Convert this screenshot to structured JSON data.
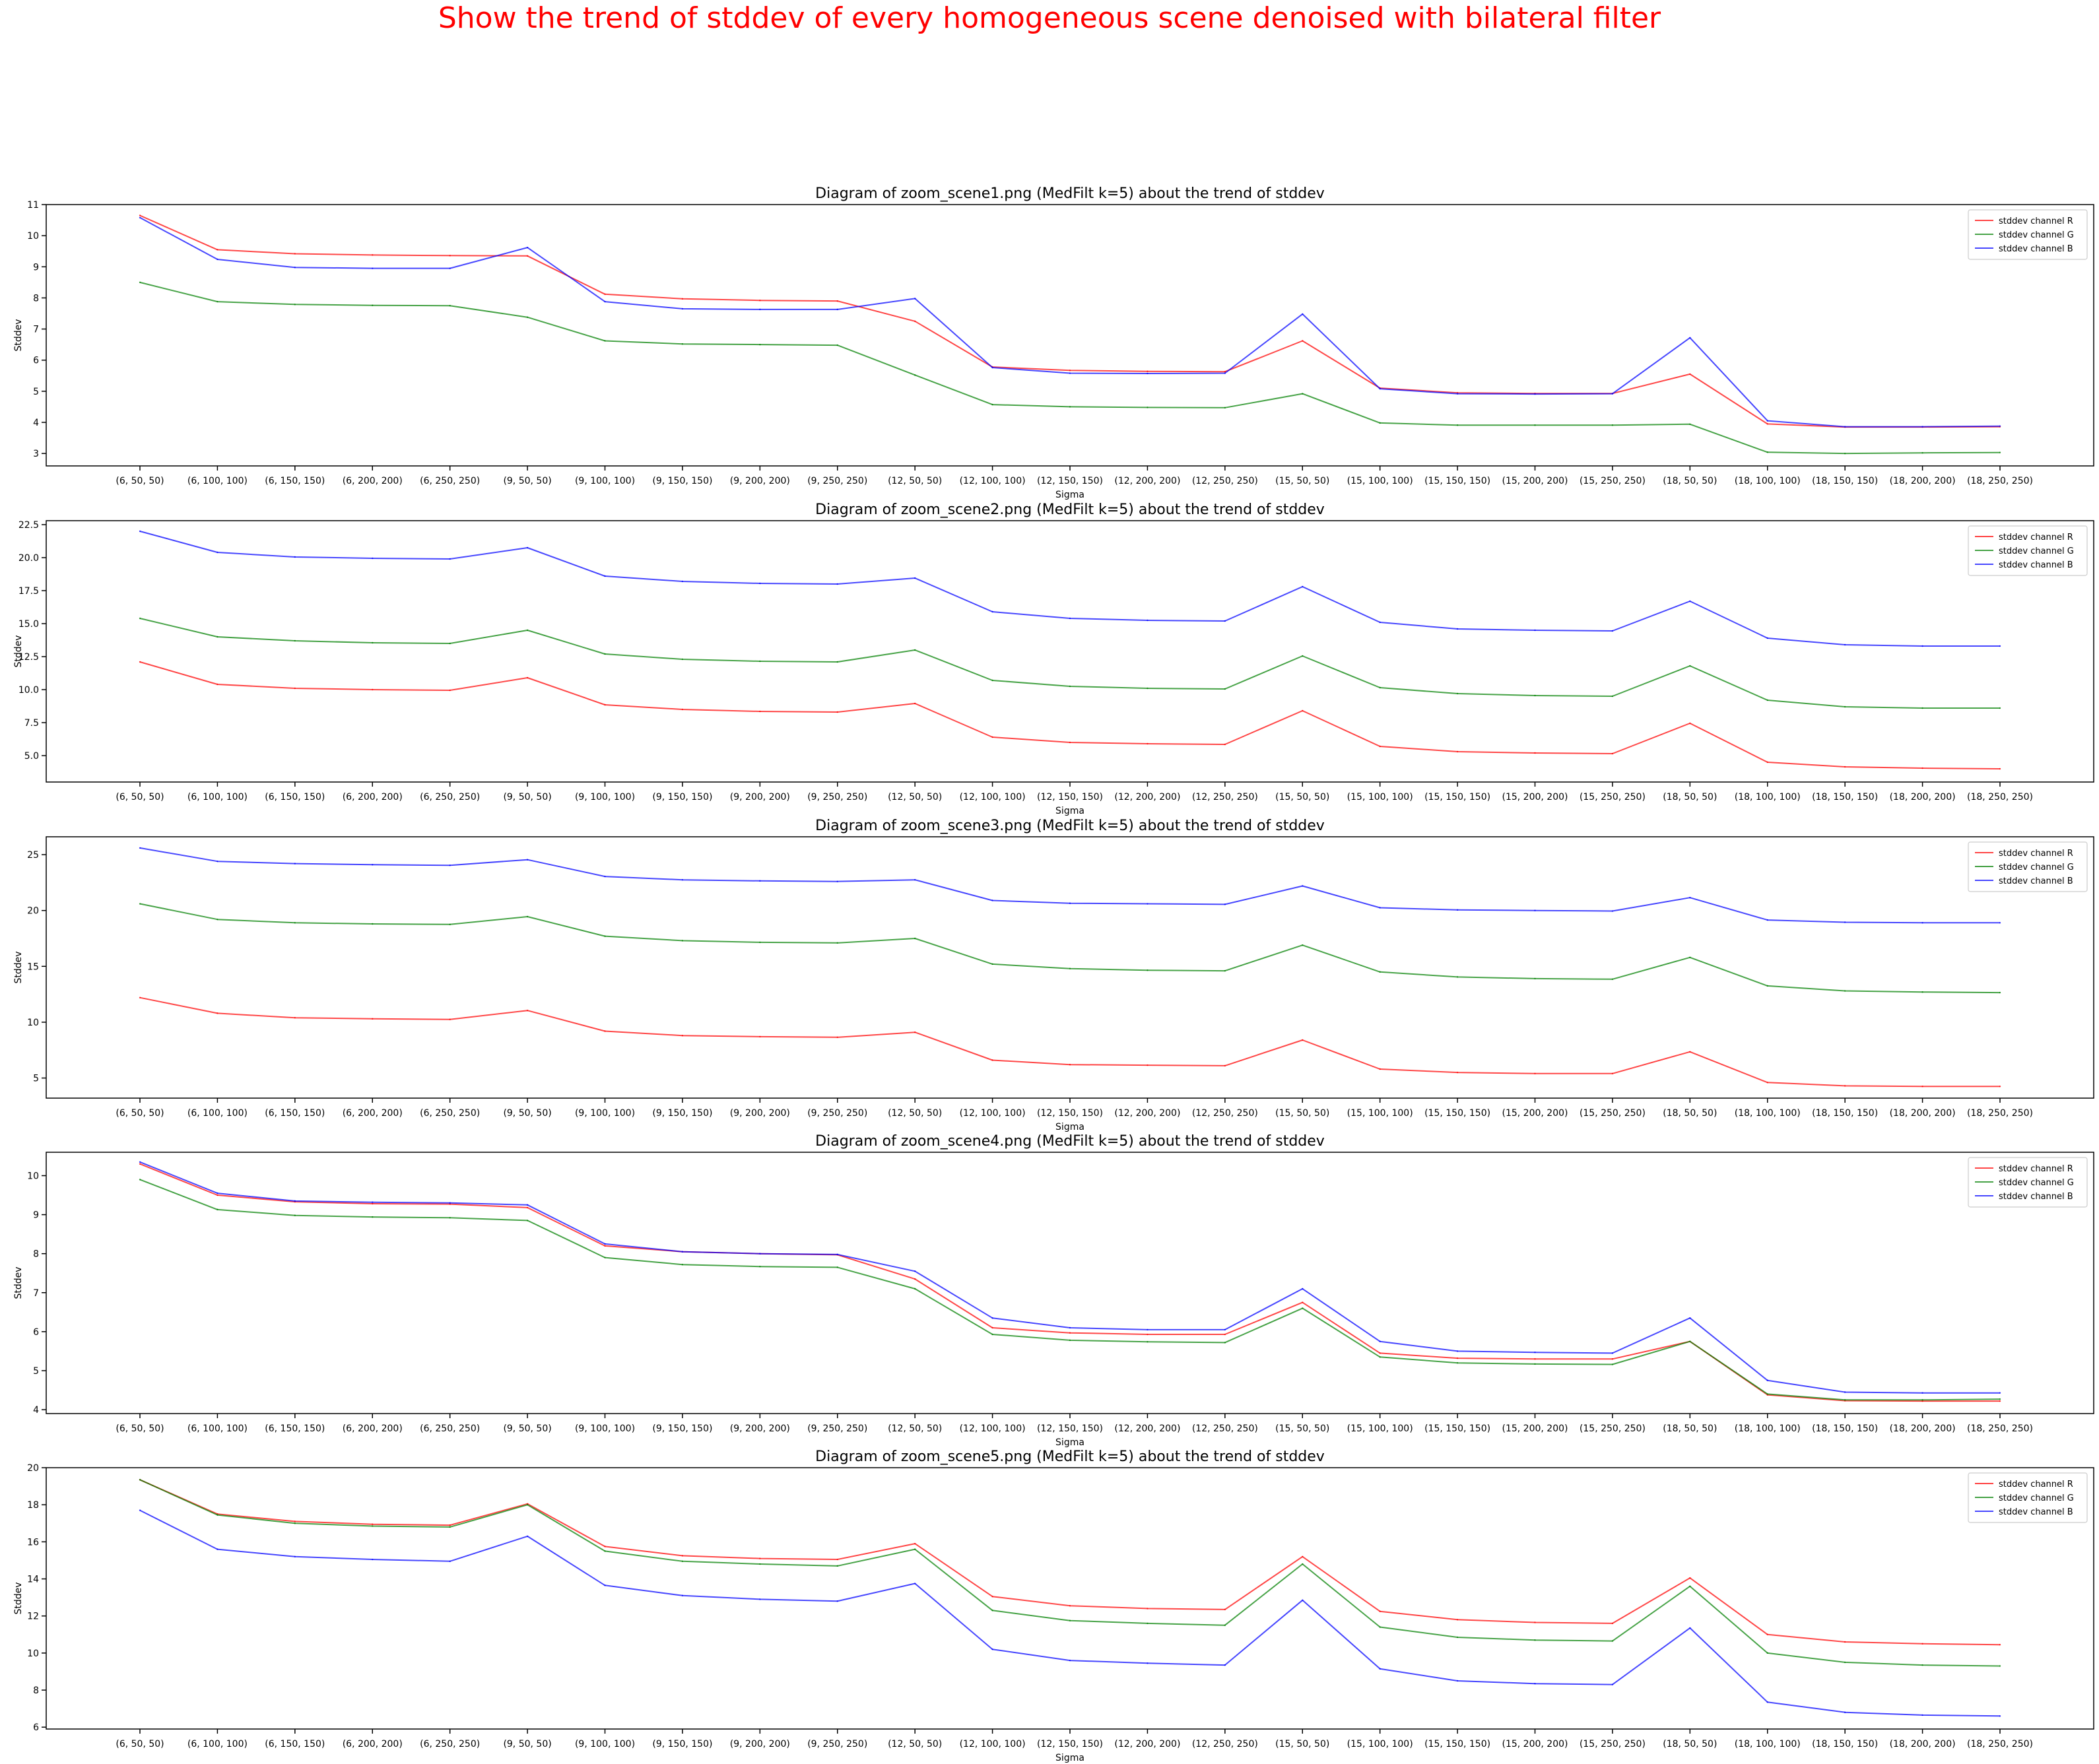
{
  "figure": {
    "suptitle": "Show the trend of stddev of every homogeneous scene denoised with bilateral filter",
    "suptitle_color": "#ff0000"
  },
  "chart_data": [
    {
      "type": "line",
      "title": "Diagram of zoom_scene1.png (MedFilt k=5) about the trend of stddev",
      "xlabel": "Sigma",
      "ylabel": "Stddev",
      "categories": [
        "(6, 50, 50)",
        "(6, 100, 100)",
        "(6, 150, 150)",
        "(6, 200, 200)",
        "(6, 250, 250)",
        "(9, 50, 50)",
        "(9, 100, 100)",
        "(9, 150, 150)",
        "(9, 200, 200)",
        "(9, 250, 250)",
        "(12, 50, 50)",
        "(12, 100, 100)",
        "(12, 150, 150)",
        "(12, 200, 200)",
        "(12, 250, 250)",
        "(15, 50, 50)",
        "(15, 100, 100)",
        "(15, 150, 150)",
        "(15, 200, 200)",
        "(15, 250, 250)",
        "(18, 50, 50)",
        "(18, 100, 100)",
        "(18, 150, 150)",
        "(18, 200, 200)",
        "(18, 250, 250)"
      ],
      "ylim": [
        2.6,
        11.0
      ],
      "yticks": [
        3,
        4,
        5,
        6,
        7,
        8,
        9,
        10,
        11
      ],
      "ytick_labels": [
        "3",
        "4",
        "5",
        "6",
        "7",
        "8",
        "9",
        "10",
        "11"
      ],
      "legend": "top-right",
      "series": [
        {
          "name": "stddev channel R",
          "color": "#ff0000",
          "values": [
            10.65,
            9.55,
            9.42,
            9.38,
            9.36,
            9.35,
            8.12,
            7.97,
            7.92,
            7.9,
            7.25,
            5.78,
            5.67,
            5.64,
            5.63,
            6.62,
            5.1,
            4.95,
            4.93,
            4.93,
            5.55,
            3.95,
            3.85,
            3.85,
            3.86
          ]
        },
        {
          "name": "stddev channel G",
          "color": "#008000",
          "values": [
            8.5,
            7.88,
            7.79,
            7.76,
            7.75,
            7.38,
            6.62,
            6.52,
            6.5,
            6.48,
            5.52,
            4.57,
            4.5,
            4.48,
            4.47,
            4.92,
            3.98,
            3.91,
            3.91,
            3.91,
            3.94,
            3.04,
            3.0,
            3.02,
            3.03
          ]
        },
        {
          "name": "stddev channel B",
          "color": "#0000ff",
          "values": [
            10.58,
            9.24,
            8.98,
            8.95,
            8.95,
            9.62,
            7.88,
            7.65,
            7.63,
            7.63,
            7.98,
            5.76,
            5.58,
            5.57,
            5.58,
            7.48,
            5.08,
            4.92,
            4.91,
            4.92,
            6.72,
            4.05,
            3.86,
            3.86,
            3.88
          ]
        }
      ]
    },
    {
      "type": "line",
      "title": "Diagram of zoom_scene2.png (MedFilt k=5) about the trend of stddev",
      "xlabel": "Sigma",
      "ylabel": "Stddev",
      "categories": [
        "(6, 50, 50)",
        "(6, 100, 100)",
        "(6, 150, 150)",
        "(6, 200, 200)",
        "(6, 250, 250)",
        "(9, 50, 50)",
        "(9, 100, 100)",
        "(9, 150, 150)",
        "(9, 200, 200)",
        "(9, 250, 250)",
        "(12, 50, 50)",
        "(12, 100, 100)",
        "(12, 150, 150)",
        "(12, 200, 200)",
        "(12, 250, 250)",
        "(15, 50, 50)",
        "(15, 100, 100)",
        "(15, 150, 150)",
        "(15, 200, 200)",
        "(15, 250, 250)",
        "(18, 50, 50)",
        "(18, 100, 100)",
        "(18, 150, 150)",
        "(18, 200, 200)",
        "(18, 250, 250)"
      ],
      "ylim": [
        3.0,
        22.8
      ],
      "yticks": [
        5.0,
        7.5,
        10.0,
        12.5,
        15.0,
        17.5,
        20.0,
        22.5
      ],
      "ytick_labels": [
        "5.0",
        "7.5",
        "10.0",
        "12.5",
        "15.0",
        "17.5",
        "20.0",
        "22.5"
      ],
      "legend": "top-right",
      "series": [
        {
          "name": "stddev channel R",
          "color": "#ff0000",
          "values": [
            12.1,
            10.4,
            10.1,
            10.0,
            9.95,
            10.9,
            8.85,
            8.5,
            8.35,
            8.3,
            8.95,
            6.4,
            6.0,
            5.9,
            5.85,
            8.4,
            5.7,
            5.3,
            5.2,
            5.15,
            7.45,
            4.5,
            4.15,
            4.05,
            4.0
          ]
        },
        {
          "name": "stddev channel G",
          "color": "#008000",
          "values": [
            15.4,
            14.0,
            13.7,
            13.55,
            13.5,
            14.5,
            12.7,
            12.3,
            12.15,
            12.1,
            13.0,
            10.7,
            10.25,
            10.1,
            10.05,
            12.55,
            10.15,
            9.7,
            9.55,
            9.5,
            11.8,
            9.2,
            8.7,
            8.6,
            8.6
          ]
        },
        {
          "name": "stddev channel B",
          "color": "#0000ff",
          "values": [
            22.0,
            20.4,
            20.05,
            19.95,
            19.9,
            20.75,
            18.6,
            18.2,
            18.05,
            18.0,
            18.45,
            15.9,
            15.4,
            15.25,
            15.2,
            17.8,
            15.1,
            14.6,
            14.5,
            14.45,
            16.7,
            13.9,
            13.4,
            13.3,
            13.3
          ]
        }
      ]
    },
    {
      "type": "line",
      "title": "Diagram of zoom_scene3.png (MedFilt k=5) about the trend of stddev",
      "xlabel": "Sigma",
      "ylabel": "Stddev",
      "categories": [
        "(6, 50, 50)",
        "(6, 100, 100)",
        "(6, 150, 150)",
        "(6, 200, 200)",
        "(6, 250, 250)",
        "(9, 50, 50)",
        "(9, 100, 100)",
        "(9, 150, 150)",
        "(9, 200, 200)",
        "(9, 250, 250)",
        "(12, 50, 50)",
        "(12, 100, 100)",
        "(12, 150, 150)",
        "(12, 200, 200)",
        "(12, 250, 250)",
        "(15, 50, 50)",
        "(15, 100, 100)",
        "(15, 150, 150)",
        "(15, 200, 200)",
        "(15, 250, 250)",
        "(18, 50, 50)",
        "(18, 100, 100)",
        "(18, 150, 150)",
        "(18, 200, 200)",
        "(18, 250, 250)"
      ],
      "ylim": [
        3.2,
        26.6
      ],
      "yticks": [
        5,
        10,
        15,
        20,
        25
      ],
      "ytick_labels": [
        "5",
        "10",
        "15",
        "20",
        "25"
      ],
      "legend": "top-right",
      "series": [
        {
          "name": "stddev channel R",
          "color": "#ff0000",
          "values": [
            12.2,
            10.8,
            10.4,
            10.3,
            10.25,
            11.05,
            9.2,
            8.8,
            8.7,
            8.65,
            9.1,
            6.6,
            6.2,
            6.15,
            6.1,
            8.4,
            5.8,
            5.5,
            5.4,
            5.4,
            7.35,
            4.6,
            4.3,
            4.25,
            4.25
          ]
        },
        {
          "name": "stddev channel G",
          "color": "#008000",
          "values": [
            20.6,
            19.2,
            18.9,
            18.8,
            18.75,
            19.45,
            17.7,
            17.3,
            17.15,
            17.1,
            17.5,
            15.2,
            14.8,
            14.65,
            14.6,
            16.9,
            14.5,
            14.05,
            13.9,
            13.85,
            15.8,
            13.25,
            12.8,
            12.7,
            12.65
          ]
        },
        {
          "name": "stddev channel B",
          "color": "#0000ff",
          "values": [
            25.6,
            24.4,
            24.2,
            24.1,
            24.05,
            24.55,
            23.05,
            22.75,
            22.65,
            22.6,
            22.75,
            20.9,
            20.65,
            20.6,
            20.55,
            22.2,
            20.25,
            20.05,
            20.0,
            19.95,
            21.15,
            19.15,
            18.95,
            18.9,
            18.9
          ]
        }
      ]
    },
    {
      "type": "line",
      "title": "Diagram of zoom_scene4.png (MedFilt k=5) about the trend of stddev",
      "xlabel": "Sigma",
      "ylabel": "Stddev",
      "categories": [
        "(6, 50, 50)",
        "(6, 100, 100)",
        "(6, 150, 150)",
        "(6, 200, 200)",
        "(6, 250, 250)",
        "(9, 50, 50)",
        "(9, 100, 100)",
        "(9, 150, 150)",
        "(9, 200, 200)",
        "(9, 250, 250)",
        "(12, 50, 50)",
        "(12, 100, 100)",
        "(12, 150, 150)",
        "(12, 200, 200)",
        "(12, 250, 250)",
        "(15, 50, 50)",
        "(15, 100, 100)",
        "(15, 150, 150)",
        "(15, 200, 200)",
        "(15, 250, 250)",
        "(18, 50, 50)",
        "(18, 100, 100)",
        "(18, 150, 150)",
        "(18, 200, 200)",
        "(18, 250, 250)"
      ],
      "ylim": [
        3.9,
        10.6
      ],
      "yticks": [
        4,
        5,
        6,
        7,
        8,
        9,
        10
      ],
      "ytick_labels": [
        "4",
        "5",
        "6",
        "7",
        "8",
        "9",
        "10"
      ],
      "legend": "top-right",
      "series": [
        {
          "name": "stddev channel R",
          "color": "#ff0000",
          "values": [
            10.3,
            9.5,
            9.33,
            9.28,
            9.27,
            9.18,
            8.2,
            8.05,
            8.0,
            7.97,
            7.35,
            6.1,
            5.97,
            5.93,
            5.93,
            6.75,
            5.45,
            5.32,
            5.3,
            5.3,
            5.75,
            4.38,
            4.23,
            4.22,
            4.22
          ]
        },
        {
          "name": "stddev channel G",
          "color": "#008000",
          "values": [
            9.9,
            9.13,
            8.98,
            8.94,
            8.92,
            8.85,
            7.9,
            7.72,
            7.67,
            7.65,
            7.1,
            5.93,
            5.78,
            5.74,
            5.72,
            6.6,
            5.35,
            5.2,
            5.17,
            5.16,
            5.75,
            4.4,
            4.25,
            4.25,
            4.27
          ]
        },
        {
          "name": "stddev channel B",
          "color": "#0000ff",
          "values": [
            10.35,
            9.55,
            9.35,
            9.32,
            9.3,
            9.25,
            8.25,
            8.05,
            8.0,
            7.98,
            7.55,
            6.35,
            6.1,
            6.05,
            6.05,
            7.1,
            5.75,
            5.5,
            5.47,
            5.45,
            6.35,
            4.75,
            4.45,
            4.43,
            4.43
          ]
        }
      ]
    },
    {
      "type": "line",
      "title": "Diagram of zoom_scene5.png (MedFilt k=5) about the trend of stddev",
      "xlabel": "Sigma",
      "ylabel": "Stddev",
      "categories": [
        "(6, 50, 50)",
        "(6, 100, 100)",
        "(6, 150, 150)",
        "(6, 200, 200)",
        "(6, 250, 250)",
        "(9, 50, 50)",
        "(9, 100, 100)",
        "(9, 150, 150)",
        "(9, 200, 200)",
        "(9, 250, 250)",
        "(12, 50, 50)",
        "(12, 100, 100)",
        "(12, 150, 150)",
        "(12, 200, 200)",
        "(12, 250, 250)",
        "(15, 50, 50)",
        "(15, 100, 100)",
        "(15, 150, 150)",
        "(15, 200, 200)",
        "(15, 250, 250)",
        "(18, 50, 50)",
        "(18, 100, 100)",
        "(18, 150, 150)",
        "(18, 200, 200)",
        "(18, 250, 250)"
      ],
      "ylim": [
        5.9,
        20.0
      ],
      "yticks": [
        6,
        8,
        10,
        12,
        14,
        16,
        18,
        20
      ],
      "ytick_labels": [
        "6",
        "8",
        "10",
        "12",
        "14",
        "16",
        "18",
        "20"
      ],
      "legend": "top-right",
      "series": [
        {
          "name": "stddev channel R",
          "color": "#ff0000",
          "values": [
            19.35,
            17.5,
            17.1,
            16.95,
            16.9,
            18.05,
            15.75,
            15.25,
            15.1,
            15.05,
            15.9,
            13.05,
            12.55,
            12.4,
            12.35,
            15.2,
            12.25,
            11.8,
            11.65,
            11.6,
            14.05,
            11.0,
            10.6,
            10.5,
            10.45
          ]
        },
        {
          "name": "stddev channel G",
          "color": "#008000",
          "values": [
            19.35,
            17.45,
            17.0,
            16.85,
            16.8,
            18.0,
            15.5,
            14.95,
            14.8,
            14.7,
            15.6,
            12.3,
            11.75,
            11.6,
            11.5,
            14.8,
            11.4,
            10.85,
            10.7,
            10.65,
            13.6,
            10.0,
            9.5,
            9.35,
            9.3
          ]
        },
        {
          "name": "stddev channel B",
          "color": "#0000ff",
          "values": [
            17.7,
            15.6,
            15.2,
            15.05,
            14.95,
            16.3,
            13.65,
            13.1,
            12.9,
            12.8,
            13.75,
            10.2,
            9.6,
            9.45,
            9.35,
            12.85,
            9.15,
            8.5,
            8.35,
            8.3,
            11.35,
            7.35,
            6.8,
            6.65,
            6.6
          ]
        }
      ]
    }
  ]
}
